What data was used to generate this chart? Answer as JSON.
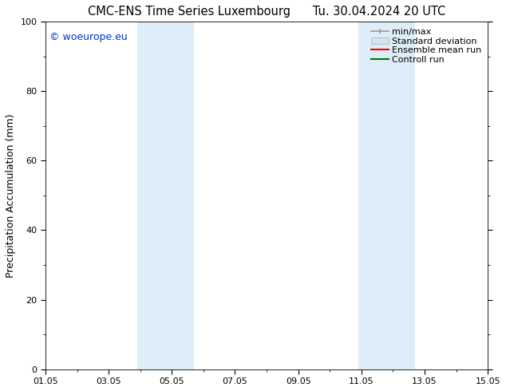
{
  "title_left": "CMC-ENS Time Series Luxembourg",
  "title_right": "Tu. 30.04.2024 20 UTC",
  "ylabel": "Precipitation Accumulation (mm)",
  "watermark": "© woeurope.eu",
  "watermark_color": "#0033cc",
  "ylim": [
    0,
    100
  ],
  "xlim_start": 0.0,
  "xlim_end": 14.0,
  "xtick_positions": [
    0,
    2,
    4,
    6,
    8,
    10,
    12,
    14
  ],
  "xtick_labels": [
    "01.05",
    "03.05",
    "05.05",
    "07.05",
    "09.05",
    "11.05",
    "13.05",
    "15.05"
  ],
  "ytick_positions": [
    0,
    20,
    40,
    60,
    80,
    100
  ],
  "shaded_regions": [
    {
      "x_start": 2.9,
      "x_end": 3.8,
      "color": "#ddeef8"
    },
    {
      "x_start": 3.8,
      "x_end": 4.7,
      "color": "#ddeef8"
    },
    {
      "x_start": 9.9,
      "x_end": 10.8,
      "color": "#ddeef8"
    },
    {
      "x_start": 10.8,
      "x_end": 11.7,
      "color": "#ddeef8"
    }
  ],
  "legend_items": [
    {
      "label": "min/max",
      "color": "#999999",
      "lw": 1.2
    },
    {
      "label": "Standard deviation",
      "color": "#d0e5f5",
      "lw": 8
    },
    {
      "label": "Ensemble mean run",
      "color": "#ff0000",
      "lw": 1.5
    },
    {
      "label": "Controll run",
      "color": "#007700",
      "lw": 1.5
    }
  ],
  "background_color": "#ffffff",
  "title_fontsize": 10.5,
  "axis_fontsize": 9,
  "tick_fontsize": 8,
  "legend_fontsize": 8
}
